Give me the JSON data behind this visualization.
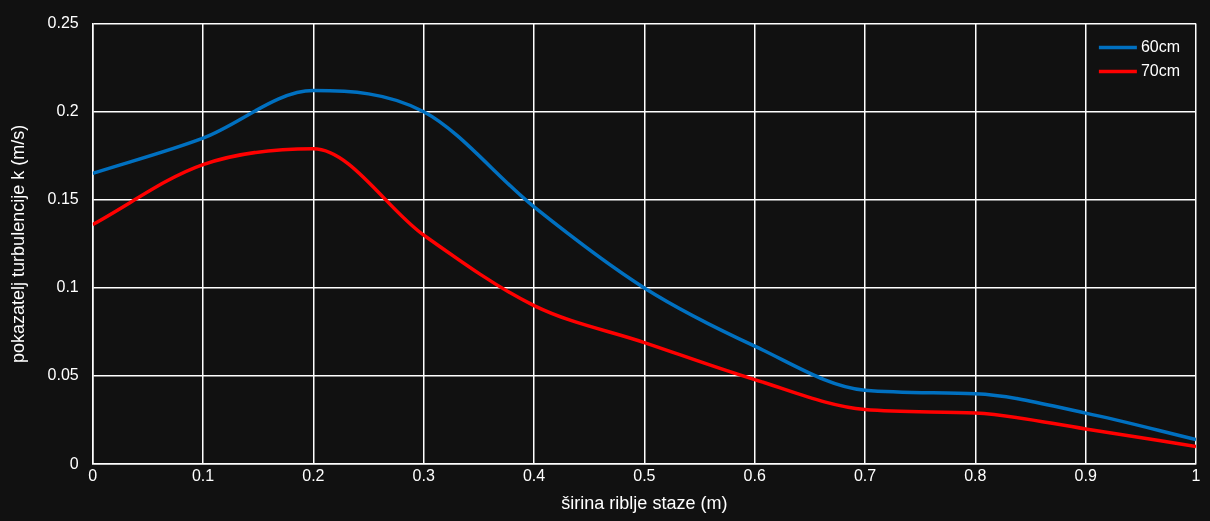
{
  "chart_data": {
    "type": "line",
    "xlabel": "širina riblje staze (m)",
    "ylabel": "pokazatelj turbulencije k (m/s)",
    "x": [
      0,
      0.1,
      0.2,
      0.3,
      0.4,
      0.5,
      0.6,
      0.7,
      0.8,
      0.9,
      1
    ],
    "series": [
      {
        "name": "60cm",
        "color": "#0070c0",
        "values": [
          0.165,
          0.185,
          0.212,
          0.2,
          0.146,
          0.1,
          0.067,
          0.042,
          0.04,
          0.029,
          0.014
        ]
      },
      {
        "name": "70cm",
        "color": "#ff0000",
        "values": [
          0.136,
          0.17,
          0.179,
          0.13,
          0.09,
          0.069,
          0.048,
          0.031,
          0.029,
          0.02,
          0.01
        ]
      }
    ],
    "xlim": [
      0,
      1
    ],
    "xticks": [
      0,
      0.1,
      0.2,
      0.3,
      0.4,
      0.5,
      0.6,
      0.7,
      0.8,
      0.9,
      1
    ],
    "ylim": [
      0,
      0.25
    ],
    "yticks": [
      0,
      0.05,
      0.1,
      0.15,
      0.2,
      0.25
    ],
    "grid": true,
    "legend": "top right",
    "marker": "none",
    "line_style": "solid"
  }
}
